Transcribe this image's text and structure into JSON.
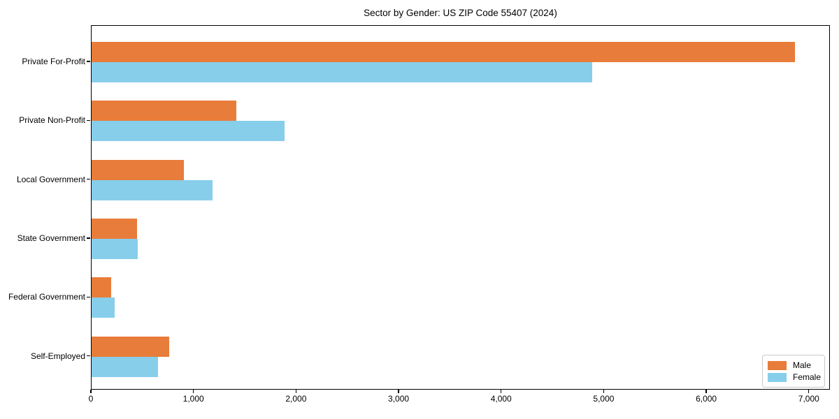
{
  "chart_data": {
    "type": "bar",
    "orientation": "horizontal",
    "title": "Sector by Gender: US ZIP Code 55407 (2024)",
    "categories": [
      "Private For-Profit",
      "Private Non-Profit",
      "Local Government",
      "State Government",
      "Federal Government",
      "Self-Employed"
    ],
    "series": [
      {
        "name": "Male",
        "color": "#e87c3a",
        "values": [
          6860,
          1410,
          900,
          440,
          190,
          760
        ]
      },
      {
        "name": "Female",
        "color": "#87ceeb",
        "values": [
          4880,
          1880,
          1180,
          450,
          225,
          650
        ]
      }
    ],
    "xlabel": "",
    "ylabel": "",
    "xlim": [
      0,
      7206
    ],
    "x_ticks": [
      0,
      1000,
      2000,
      3000,
      4000,
      5000,
      6000,
      7000
    ],
    "x_tick_labels": [
      "0",
      "1,000",
      "2,000",
      "3,000",
      "4,000",
      "5,000",
      "6,000",
      "7,000"
    ],
    "grid": false,
    "legend_position": "lower right"
  }
}
